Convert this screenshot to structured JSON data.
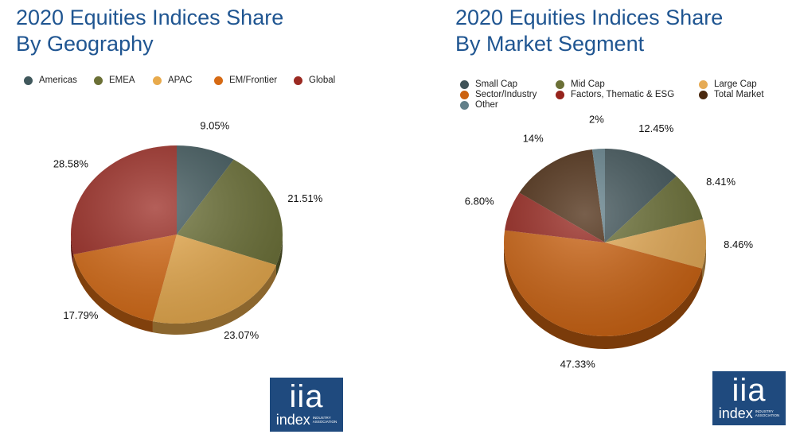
{
  "chart_data": [
    {
      "type": "pie",
      "title": "2020 Equities Indices Share By Geography",
      "title_lines": [
        "2020 Equities Indices Share",
        "By Geography"
      ],
      "legend_placement": "top",
      "categories": [
        "Americas",
        "EMEA",
        "APAC",
        "EM/Frontier",
        "Global"
      ],
      "values": [
        9.05,
        21.51,
        23.07,
        17.79,
        28.58
      ],
      "labels": [
        "9.05%",
        "21.51%",
        "23.07%",
        "17.79%",
        "28.58%"
      ],
      "colors": [
        "#40585c",
        "#6b7036",
        "#e8aa4c",
        "#d66a14",
        "#9b2a22"
      ]
    },
    {
      "type": "pie",
      "title": "2020 Equities Indices Share By Market Segment",
      "title_lines": [
        "2020 Equities Indices Share",
        "By Market Segment"
      ],
      "legend_placement": "top",
      "categories": [
        "Small Cap",
        "Mid Cap",
        "Large Cap",
        "Sector/Industry",
        "Factors, Thematic & ESG",
        "Total Market",
        "Other"
      ],
      "values": [
        12.45,
        8.41,
        8.46,
        47.33,
        6.8,
        14,
        2
      ],
      "labels": [
        "12.45%",
        "8.41%",
        "8.46%",
        "47.33%",
        "6.80%",
        "14%",
        "2%"
      ],
      "colors": [
        "#3f5358",
        "#6b7036",
        "#e6ab55",
        "#cc6210",
        "#96241c",
        "#4b2a10",
        "#62808a"
      ]
    }
  ],
  "logo": {
    "big": "iia",
    "word": "index",
    "sub1": "INDUSTRY",
    "sub2": "ASSOCIATION"
  }
}
